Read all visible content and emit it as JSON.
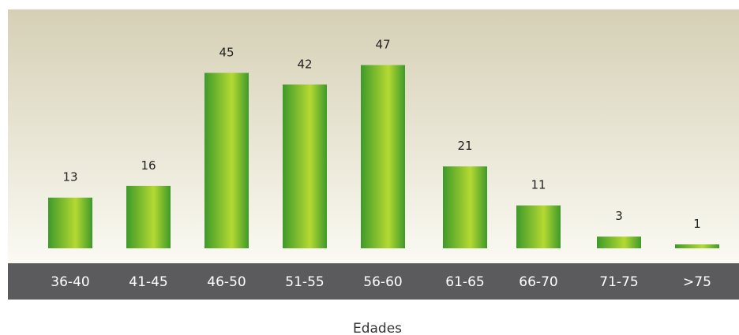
{
  "chart_data": {
    "type": "bar",
    "categories": [
      "36-40",
      "41-45",
      "46-50",
      "51-55",
      "56-60",
      "61-65",
      "66-70",
      "71-75",
      ">75"
    ],
    "values": [
      13,
      16,
      45,
      42,
      47,
      21,
      11,
      3,
      1
    ],
    "xlabel": "Edades",
    "ylabel": "",
    "ylim": [
      0,
      55
    ],
    "grid": false,
    "legend": "none",
    "data_labels": true
  },
  "colors": {
    "background_top": "#d5d0b5",
    "background_bottom": "#fbfaf3",
    "bar_dark": "#3e9a2a",
    "bar_light": "#b5d932",
    "category_band": "#5b5b5d",
    "category_text": "#ffffff",
    "value_text": "#222222"
  }
}
